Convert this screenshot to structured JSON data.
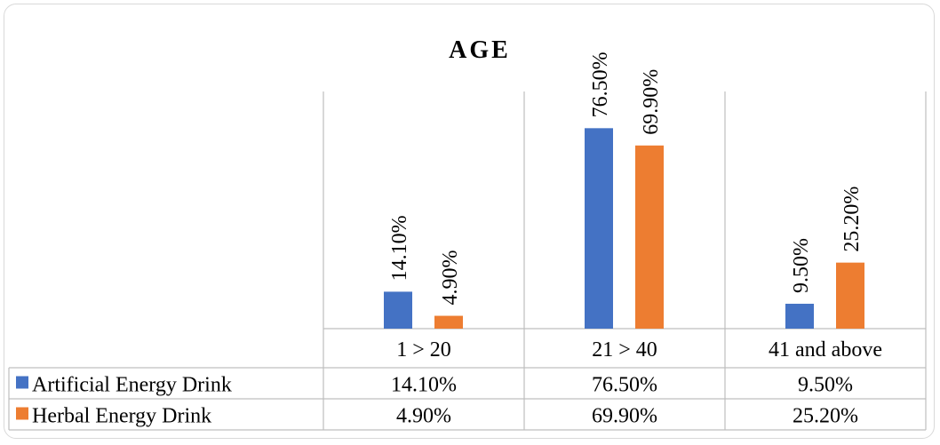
{
  "chart_data": {
    "type": "bar",
    "title": "AGE",
    "categories": [
      "1 > 20",
      "21 > 40",
      "41 and above"
    ],
    "series": [
      {
        "name": "Artificial Energy Drink",
        "values": [
          14.1,
          76.5,
          9.5
        ],
        "labels": [
          "14.10%",
          "76.50%",
          "9.50%"
        ],
        "color": "#4472C4"
      },
      {
        "name": "Herbal Energy Drink",
        "values": [
          4.9,
          69.9,
          25.2
        ],
        "labels": [
          "4.90%",
          "69.90%",
          "25.20%"
        ],
        "color": "#ED7D31"
      }
    ],
    "ylim": [
      0,
      100
    ],
    "grid": false,
    "legend": "data-table"
  }
}
